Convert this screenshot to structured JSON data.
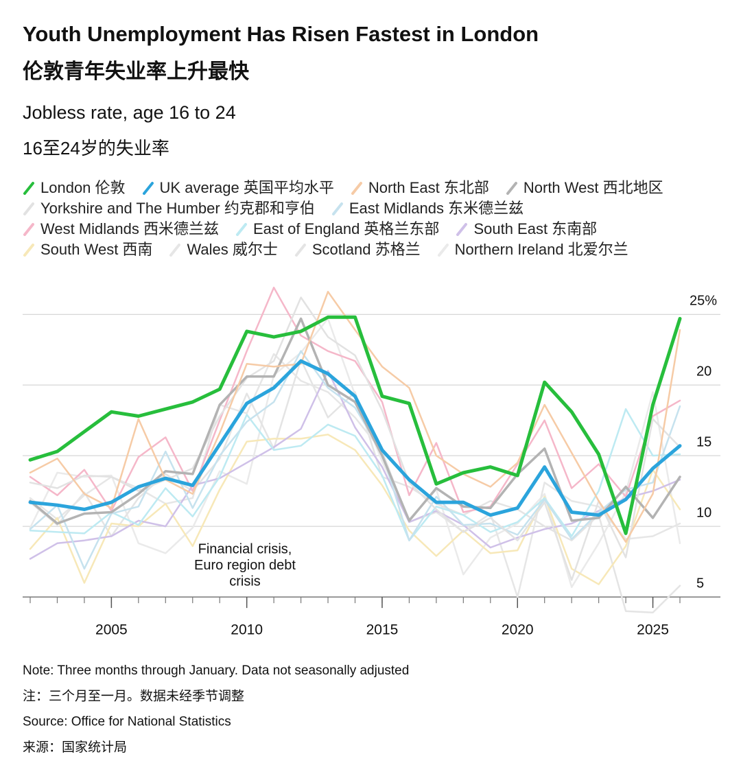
{
  "chart_data": {
    "type": "line",
    "title": "Youth Unemployment Has Risen Fastest in London",
    "title_cn": "伦敦青年失业率上升最快",
    "subtitle": "Jobless rate, age 16 to 24",
    "subtitle_cn": "16至24岁的失业率",
    "annotation": [
      "Financial crisis,",
      "Euro region debt",
      "crisis"
    ],
    "notes": [
      "Note: Three months through January. Data not seasonally adjusted",
      "注：三个月至一月。数据未经季节调整",
      "Source: Office for National Statistics",
      "来源：国家统计局"
    ],
    "x": [
      2002,
      2003,
      2004,
      2005,
      2006,
      2007,
      2008,
      2009,
      2010,
      2011,
      2012,
      2013,
      2014,
      2015,
      2016,
      2017,
      2018,
      2019,
      2020,
      2021,
      2022,
      2023,
      2024,
      2025,
      2026
    ],
    "xlim": [
      2002,
      2026
    ],
    "xticks": [
      2005,
      2010,
      2015,
      2020,
      2025
    ],
    "ylim": [
      3.5,
      27
    ],
    "yticks": [
      5,
      10,
      15,
      20,
      {
        "value": 25,
        "label": "25%"
      }
    ],
    "grid": true,
    "series": [
      {
        "name": "London 伦敦",
        "color": "#27be3c",
        "values": [
          14.7,
          15.3,
          16.7,
          18.1,
          17.8,
          18.3,
          18.8,
          19.7,
          23.8,
          23.4,
          23.8,
          24.8,
          24.8,
          19.2,
          18.7,
          13.0,
          13.8,
          14.2,
          13.6,
          20.2,
          18.1,
          15.1,
          9.5,
          18.6,
          24.7
        ]
      },
      {
        "name": "UK average 英国平均水平",
        "color": "#2ba4dc",
        "values": [
          11.7,
          11.5,
          11.2,
          11.7,
          12.8,
          13.4,
          12.9,
          15.8,
          18.7,
          19.8,
          21.7,
          20.8,
          19.2,
          15.4,
          13.3,
          11.7,
          11.7,
          10.8,
          11.3,
          14.2,
          11.0,
          10.8,
          11.9,
          14.1,
          15.7
        ]
      },
      {
        "name": "North East 东北部",
        "color": "#f6cba6",
        "values": [
          13.8,
          14.8,
          12.3,
          11.3,
          17.6,
          13.3,
          12.3,
          16.6,
          21.5,
          21.3,
          21.5,
          26.6,
          23.9,
          21.3,
          19.8,
          15.0,
          13.7,
          12.8,
          14.5,
          18.6,
          15.2,
          11.8,
          8.9,
          12.3,
          23.9
        ]
      },
      {
        "name": "North West 西北地区",
        "color": "#b3b3b3",
        "values": [
          11.8,
          10.2,
          10.9,
          11.0,
          12.3,
          13.9,
          13.7,
          18.6,
          20.6,
          20.6,
          24.7,
          20.0,
          18.8,
          15.0,
          10.4,
          12.7,
          11.4,
          11.3,
          13.7,
          15.5,
          10.4,
          10.6,
          12.8,
          10.6,
          13.5
        ]
      },
      {
        "name": "Yorkshire and The Humber 约克郡和亨伯",
        "color": "#e2e2e2",
        "values": [
          13.1,
          12.7,
          13.6,
          13.5,
          12.5,
          13.3,
          14.1,
          17.8,
          20.5,
          21.7,
          26.2,
          23.4,
          22.1,
          18.2,
          13.1,
          11.2,
          9.6,
          10.6,
          9.0,
          11.7,
          6.2,
          11.8,
          7.8,
          17.6,
          15.6
        ]
      },
      {
        "name": "East Midlands 东米德兰兹",
        "color": "#c6e2ee",
        "values": [
          9.8,
          11.5,
          7.0,
          10.9,
          11.4,
          15.3,
          11.3,
          15.0,
          17.4,
          18.8,
          22.4,
          19.8,
          18.4,
          15.2,
          9.0,
          12.1,
          10.1,
          10.2,
          9.4,
          11.9,
          9.1,
          11.0,
          12.6,
          13.1,
          18.5
        ]
      },
      {
        "name": "West Midlands 西米德兰兹",
        "color": "#f5b7c9",
        "values": [
          13.5,
          12.2,
          14.0,
          11.1,
          14.9,
          16.3,
          12.5,
          17.5,
          22.4,
          26.9,
          23.5,
          22.4,
          21.7,
          18.8,
          12.2,
          15.9,
          11.0,
          11.4,
          14.4,
          17.5,
          12.7,
          14.4,
          12.1,
          17.8,
          18.9
        ]
      },
      {
        "name": "East of England 英格兰东部",
        "color": "#bdeaf2",
        "values": [
          9.7,
          9.6,
          9.5,
          11.0,
          10.1,
          12.7,
          10.7,
          13.5,
          17.9,
          15.4,
          15.7,
          17.2,
          16.4,
          13.6,
          9.0,
          11.4,
          10.8,
          9.6,
          10.3,
          12.0,
          9.3,
          12.5,
          18.3,
          15.0,
          15.1
        ]
      },
      {
        "name": "South East 东南部",
        "color": "#cfc0e8",
        "values": [
          7.7,
          8.8,
          9.0,
          9.3,
          10.4,
          10.0,
          12.9,
          13.4,
          14.5,
          15.6,
          16.9,
          21.0,
          17.0,
          14.2,
          10.3,
          11.1,
          10.1,
          8.5,
          9.2,
          9.8,
          10.2,
          11.1,
          12.0,
          12.5,
          13.3
        ]
      },
      {
        "name": "South West 西南",
        "color": "#f7e8b8",
        "values": [
          8.4,
          10.6,
          6.0,
          10.2,
          10.0,
          11.6,
          8.6,
          12.6,
          16.0,
          16.2,
          16.2,
          16.5,
          15.4,
          12.9,
          9.7,
          7.9,
          9.7,
          8.1,
          8.3,
          12.1,
          7.0,
          5.9,
          8.6,
          14.0,
          11.2
        ]
      },
      {
        "name": "Wales 威尔士",
        "color": "#e6e6e6",
        "values": [
          12.0,
          10.5,
          12.2,
          13.5,
          12.7,
          11.6,
          12.0,
          18.6,
          18.0,
          22.2,
          20.3,
          19.5,
          17.7,
          15.3,
          10.3,
          11.0,
          9.6,
          10.9,
          5.0,
          13.1,
          11.8,
          11.4,
          9.1,
          9.3,
          10.2
        ]
      },
      {
        "name": "Scotland 苏格兰",
        "color": "#e4e4e4",
        "values": [
          11.7,
          10.1,
          12.4,
          9.3,
          12.0,
          13.7,
          12.5,
          14.8,
          19.4,
          15.5,
          21.8,
          17.7,
          19.5,
          13.5,
          12.8,
          11.6,
          10.8,
          11.8,
          11.2,
          10.0,
          9.0,
          10.8,
          4.0,
          3.9,
          5.8
        ]
      },
      {
        "name": "Northern Ireland 北爱尔兰",
        "color": "#eaeaea",
        "values": [
          9.9,
          13.8,
          13.5,
          13.6,
          8.8,
          8.1,
          9.9,
          13.9,
          13.0,
          20.7,
          22.3,
          24.7,
          19.3,
          14.6,
          10.5,
          12.6,
          6.6,
          9.2,
          10.2,
          12.3,
          5.7,
          8.8,
          12.4,
          19.5,
          8.8
        ]
      }
    ]
  }
}
